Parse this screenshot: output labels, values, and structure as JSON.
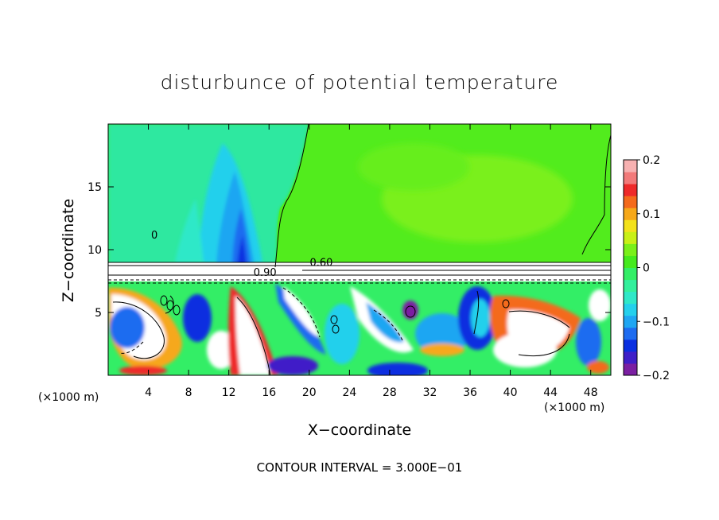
{
  "chart_data": {
    "type": "heatmap",
    "title": "disturbunce of potential temperature",
    "xlabel": "X−coordinate",
    "ylabel": "Z−coordinate",
    "x_unit": "(×1000 m)",
    "y_unit": "",
    "footer": "CONTOUR INTERVAL = 3.000E−01",
    "xlim": [
      0,
      50
    ],
    "ylim": [
      0,
      20
    ],
    "x_ticks": [
      4,
      8,
      12,
      16,
      20,
      24,
      28,
      32,
      36,
      40,
      44,
      48
    ],
    "y_ticks": [
      5,
      10,
      15
    ],
    "colorbar": {
      "range": [
        -0.2,
        0.2
      ],
      "tick_values": [
        0.2,
        0.1,
        0,
        -0.1,
        -0.2
      ],
      "tick_labels": [
        "0.2",
        "0.1",
        "0",
        "−0.1",
        "−0.2"
      ],
      "colors": [
        "#7b1fa2",
        "#3f1fc8",
        "#0a2fe0",
        "#1e6cf0",
        "#1fa6f2",
        "#24d0ec",
        "#2fe8c8",
        "#33f09c",
        "#33ee66",
        "#45ea1d",
        "#7af01a",
        "#c9f016",
        "#f3e21b",
        "#f6a81a",
        "#f46a1c",
        "#ee2a2a",
        "#f27a7a",
        "#f7b1b1"
      ]
    },
    "contour_labels": [
      {
        "text": "0",
        "x": 4.6,
        "y": 10.9
      },
      {
        "text": "0.60",
        "x": 21.2,
        "y": 8.7
      },
      {
        "text": "0.90",
        "x": 15.6,
        "y": 7.9
      }
    ],
    "contour_interval": 0.3,
    "legend": "colorbar right"
  }
}
